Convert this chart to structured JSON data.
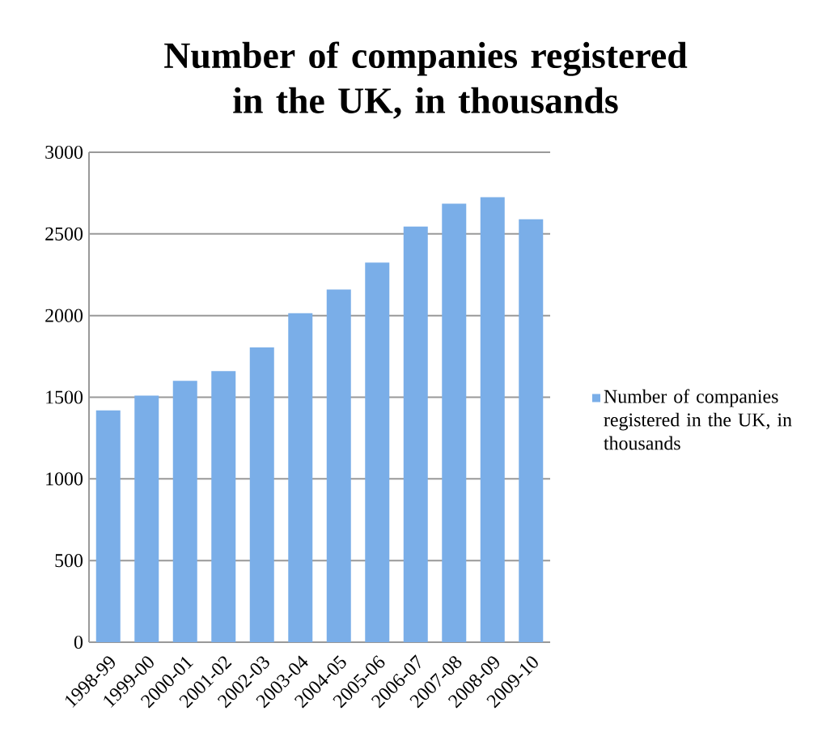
{
  "chart_data": {
    "type": "bar",
    "title": "Number of companies registered in the UK, in thousands",
    "categories": [
      "1998-99",
      "1999-00",
      "2000-01",
      "2001-02",
      "2002-03",
      "2003-04",
      "2004-05",
      "2005-06",
      "2006-07",
      "2007-08",
      "2008-09",
      "2009-10"
    ],
    "series": [
      {
        "name": "Number of companies registered in the UK, in thousands",
        "color": "#7aaee8",
        "values": [
          1420,
          1510,
          1600,
          1660,
          1805,
          2015,
          2160,
          2325,
          2545,
          2685,
          2725,
          2590
        ]
      }
    ],
    "ylim": [
      0,
      3000
    ],
    "yticks": [
      0,
      500,
      1000,
      1500,
      2000,
      2500,
      3000
    ],
    "grid": "y",
    "legend": "right"
  }
}
